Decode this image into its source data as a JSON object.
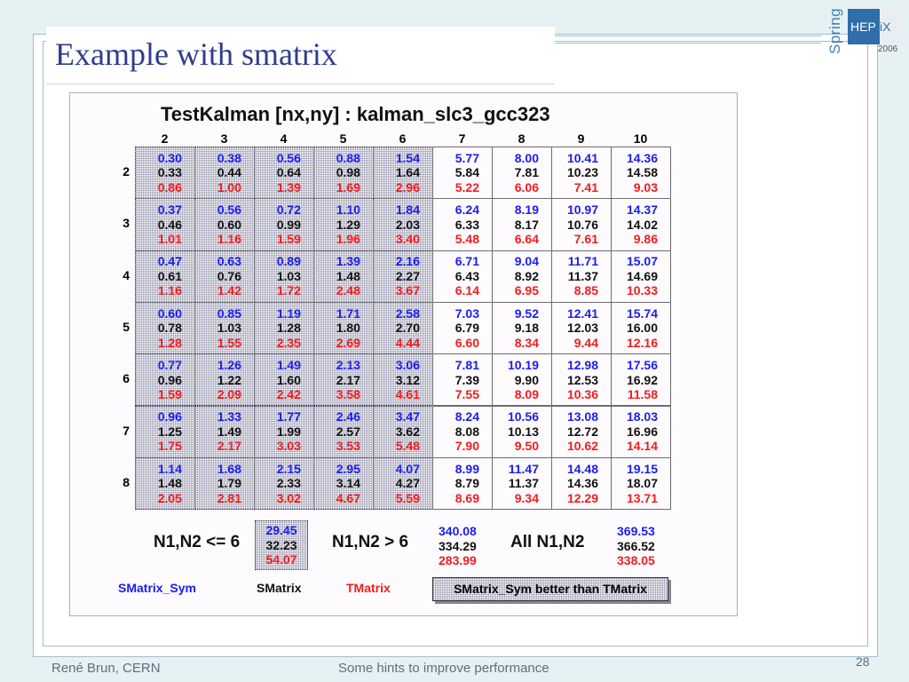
{
  "slide": {
    "title": "Example with smatrix",
    "logo": {
      "spring": "Spring",
      "hepix_a": "HEP",
      "hepix_b": "iX",
      "year": "2006"
    },
    "footer_author": "René Brun, CERN",
    "footer_center": "Some hints to improve performance",
    "page_number": "28"
  },
  "chart": {
    "title": "TestKalman [nx,ny] : kalman_slc3_gcc323",
    "col_headers": [
      "2",
      "3",
      "4",
      "5",
      "6",
      "7",
      "8",
      "9",
      "10"
    ],
    "row_headers": [
      "2",
      "3",
      "4",
      "5",
      "6",
      "7",
      "8"
    ],
    "rows": [
      [
        [
          "0.30",
          "0.33",
          "0.86"
        ],
        [
          "0.38",
          "0.44",
          "1.00"
        ],
        [
          "0.56",
          "0.64",
          "1.39"
        ],
        [
          "0.88",
          "0.98",
          "1.69"
        ],
        [
          "1.54",
          "1.64",
          "2.96"
        ],
        [
          "5.77",
          "5.84",
          "5.22"
        ],
        [
          "8.00",
          "7.81",
          "6.06"
        ],
        [
          "10.41",
          "10.23",
          "7.41"
        ],
        [
          "14.36",
          "14.58",
          "9.03"
        ]
      ],
      [
        [
          "0.37",
          "0.46",
          "1.01"
        ],
        [
          "0.56",
          "0.60",
          "1.16"
        ],
        [
          "0.72",
          "0.99",
          "1.59"
        ],
        [
          "1.10",
          "1.29",
          "1.96"
        ],
        [
          "1.84",
          "2.03",
          "3.40"
        ],
        [
          "6.24",
          "6.33",
          "5.48"
        ],
        [
          "8.19",
          "8.17",
          "6.64"
        ],
        [
          "10.97",
          "10.76",
          "7.61"
        ],
        [
          "14.37",
          "14.02",
          "9.86"
        ]
      ],
      [
        [
          "0.47",
          "0.61",
          "1.16"
        ],
        [
          "0.63",
          "0.76",
          "1.42"
        ],
        [
          "0.89",
          "1.03",
          "1.72"
        ],
        [
          "1.39",
          "1.48",
          "2.48"
        ],
        [
          "2.16",
          "2.27",
          "3.67"
        ],
        [
          "6.71",
          "6.43",
          "6.14"
        ],
        [
          "9.04",
          "8.92",
          "6.95"
        ],
        [
          "11.71",
          "11.37",
          "8.85"
        ],
        [
          "15.07",
          "14.69",
          "10.33"
        ]
      ],
      [
        [
          "0.60",
          "0.78",
          "1.28"
        ],
        [
          "0.85",
          "1.03",
          "1.55"
        ],
        [
          "1.19",
          "1.28",
          "2.35"
        ],
        [
          "1.71",
          "1.80",
          "2.69"
        ],
        [
          "2.58",
          "2.70",
          "4.44"
        ],
        [
          "7.03",
          "6.79",
          "6.60"
        ],
        [
          "9.52",
          "9.18",
          "8.34"
        ],
        [
          "12.41",
          "12.03",
          "9.44"
        ],
        [
          "15.74",
          "16.00",
          "12.16"
        ]
      ],
      [
        [
          "0.77",
          "0.96",
          "1.59"
        ],
        [
          "1.26",
          "1.22",
          "2.09"
        ],
        [
          "1.49",
          "1.60",
          "2.42"
        ],
        [
          "2.13",
          "2.17",
          "3.58"
        ],
        [
          "3.06",
          "3.12",
          "4.61"
        ],
        [
          "7.81",
          "7.39",
          "7.55"
        ],
        [
          "10.19",
          "9.90",
          "8.09"
        ],
        [
          "12.98",
          "12.53",
          "10.36"
        ],
        [
          "17.56",
          "16.92",
          "11.58"
        ]
      ],
      [
        [
          "0.96",
          "1.25",
          "1.75"
        ],
        [
          "1.33",
          "1.49",
          "2.17"
        ],
        [
          "1.77",
          "1.99",
          "3.03"
        ],
        [
          "2.46",
          "2.57",
          "3.53"
        ],
        [
          "3.47",
          "3.62",
          "5.48"
        ],
        [
          "8.24",
          "8.08",
          "7.90"
        ],
        [
          "10.56",
          "10.13",
          "9.50"
        ],
        [
          "13.08",
          "12.72",
          "10.62"
        ],
        [
          "18.03",
          "16.96",
          "14.14"
        ]
      ],
      [
        [
          "1.14",
          "1.48",
          "2.05"
        ],
        [
          "1.68",
          "1.79",
          "2.81"
        ],
        [
          "2.15",
          "2.33",
          "3.02"
        ],
        [
          "2.95",
          "3.14",
          "4.67"
        ],
        [
          "4.07",
          "4.27",
          "5.59"
        ],
        [
          "8.99",
          "8.79",
          "8.69"
        ],
        [
          "11.47",
          "11.37",
          "9.34"
        ],
        [
          "14.48",
          "14.36",
          "12.29"
        ],
        [
          "19.15",
          "18.07",
          "13.71"
        ]
      ]
    ],
    "hatched_cols": 5,
    "summary": {
      "label_le6": "N1,N2 <= 6",
      "values_le6": [
        "29.45",
        "32.23",
        "54.07"
      ],
      "label_gt6": "N1,N2 >  6",
      "values_gt6": [
        "340.08",
        "334.29",
        "283.99"
      ],
      "label_all": "All N1,N2",
      "values_all": [
        "369.53",
        "366.52",
        "338.05"
      ]
    },
    "legend": {
      "smatrix_sym": "SMatrix_Sym",
      "smatrix": "SMatrix",
      "tmatrix": "TMatrix",
      "note": "SMatrix_Sym better than TMatrix"
    },
    "colors": {
      "smatrix_sym": "#1c1cf0",
      "smatrix": "#111111",
      "tmatrix": "#f21c1c"
    }
  }
}
